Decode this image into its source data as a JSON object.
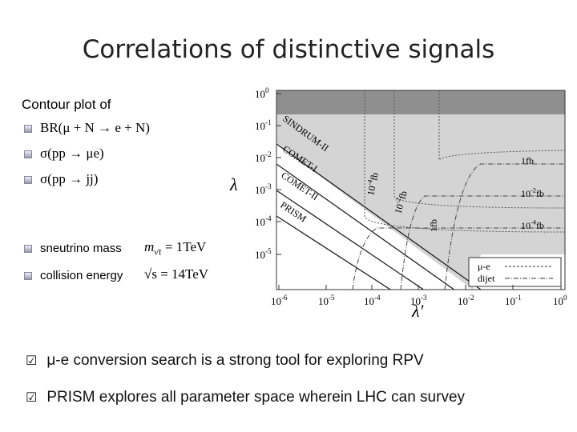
{
  "slide": {
    "title": "Correlations of distinctive signals",
    "intro": "Contour plot of",
    "observables": [
      "BR(μ  + N → e  + N)",
      "σ(pp  → μe)",
      "σ(pp  → jj)"
    ],
    "params": [
      {
        "name": "sneutrino mass",
        "formula": "m",
        "sub": "ν̃τ",
        "rest": " = 1TeV"
      },
      {
        "name": "collision energy",
        "formula": "√s",
        "sub": "",
        "rest": " = 14TeV"
      }
    ],
    "conclusions": [
      "μ-e conversion search is a strong tool for exploring RPV",
      "PRISM explores all parameter space wherein LHC can survey"
    ]
  },
  "plot": {
    "y_label": "λ",
    "x_label": "λ′",
    "y_ticks": [
      {
        "base": "10",
        "exp": "0"
      },
      {
        "base": "10",
        "exp": "-1"
      },
      {
        "base": "10",
        "exp": "-2"
      },
      {
        "base": "10",
        "exp": "-3"
      },
      {
        "base": "10",
        "exp": "-4"
      },
      {
        "base": "10",
        "exp": "-5"
      }
    ],
    "x_ticks": [
      {
        "base": "10",
        "exp": "-6"
      },
      {
        "base": "10",
        "exp": "-5"
      },
      {
        "base": "10",
        "exp": "-4"
      },
      {
        "base": "10",
        "exp": "-3"
      },
      {
        "base": "10",
        "exp": "-2"
      },
      {
        "base": "10",
        "exp": "-1"
      },
      {
        "base": "10",
        "exp": "0"
      }
    ],
    "experiments": [
      "SINDRUM-II",
      "COMET-I",
      "COMET-II",
      "PRISM"
    ],
    "vertical_labels": [
      {
        "base": "10",
        "exp": "-4",
        "unit": "fb"
      },
      {
        "base": "10",
        "exp": "-2",
        "unit": "fb"
      },
      {
        "base": "1",
        "exp": "",
        "unit": "fb"
      }
    ],
    "right_labels": [
      {
        "base": "1",
        "exp": "",
        "unit": "fb"
      },
      {
        "base": "10",
        "exp": "-2",
        "unit": "fb"
      },
      {
        "base": "10",
        "exp": "-4",
        "unit": "fb"
      }
    ],
    "legend": [
      "μ-e",
      "dijet"
    ]
  }
}
